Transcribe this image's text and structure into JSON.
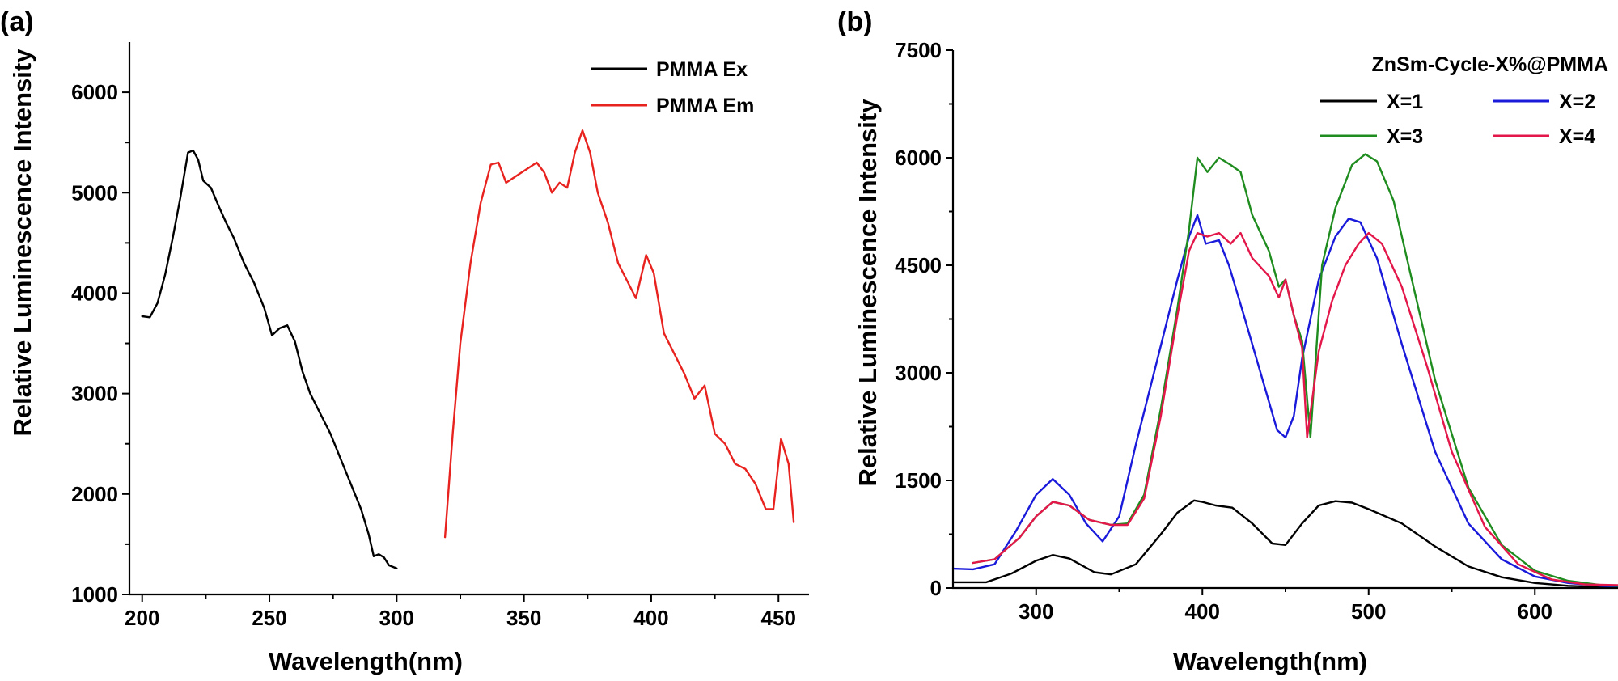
{
  "chart_data": [
    {
      "type": "line",
      "panel_label": "(a)",
      "xlabel": "Wavelength(nm)",
      "ylabel": "Relative Luminescence Intensity",
      "xlim": [
        195,
        462
      ],
      "ylim": [
        1000,
        6500
      ],
      "xticks": [
        200,
        250,
        300,
        350,
        400,
        450
      ],
      "yticks": [
        1000,
        2000,
        3000,
        4000,
        5000,
        6000
      ],
      "legend": {
        "position": "top-right"
      },
      "series": [
        {
          "name": "PMMA Ex",
          "color": "#000000",
          "x": [
            200,
            203,
            206,
            209,
            212,
            215,
            218,
            220,
            222,
            224,
            227,
            230,
            233,
            236,
            240,
            244,
            248,
            251,
            254,
            257,
            260,
            263,
            266,
            270,
            274,
            278,
            282,
            286,
            289,
            291,
            293,
            295,
            297,
            300
          ],
          "y": [
            3770,
            3760,
            3900,
            4180,
            4550,
            4950,
            5400,
            5420,
            5330,
            5120,
            5050,
            4870,
            4700,
            4550,
            4300,
            4100,
            3850,
            3580,
            3650,
            3680,
            3520,
            3220,
            3000,
            2800,
            2600,
            2350,
            2100,
            1850,
            1600,
            1380,
            1400,
            1370,
            1290,
            1260
          ]
        },
        {
          "name": "PMMA Em",
          "color": "#e8231f",
          "x": [
            319,
            322,
            325,
            329,
            333,
            337,
            340,
            343,
            346,
            349,
            352,
            355,
            358,
            361,
            364,
            367,
            370,
            373,
            376,
            379,
            383,
            387,
            391,
            394,
            398,
            401,
            405,
            409,
            413,
            417,
            421,
            425,
            429,
            433,
            437,
            441,
            445,
            448,
            451,
            454,
            456
          ],
          "y": [
            1570,
            2600,
            3500,
            4300,
            4900,
            5280,
            5300,
            5100,
            5150,
            5200,
            5250,
            5300,
            5200,
            5000,
            5100,
            5050,
            5400,
            5620,
            5400,
            5000,
            4700,
            4300,
            4100,
            3950,
            4380,
            4200,
            3600,
            3400,
            3200,
            2950,
            3080,
            2600,
            2500,
            2300,
            2250,
            2100,
            1850,
            1850,
            2550,
            2300,
            1720
          ]
        }
      ]
    },
    {
      "type": "line",
      "panel_label": "(b)",
      "xlabel": "Wavelength(nm)",
      "ylabel": "Relative Luminescence Intensity",
      "xlim": [
        250,
        650
      ],
      "ylim": [
        0,
        7500
      ],
      "xticks": [
        300,
        400,
        500,
        600
      ],
      "yticks": [
        0,
        1500,
        3000,
        4500,
        6000,
        7500
      ],
      "legend": {
        "title": "ZnSm-Cycle-X%@PMMA",
        "position": "top-right"
      },
      "series": [
        {
          "name": "X=1",
          "color": "#000000",
          "x": [
            250,
            270,
            285,
            300,
            310,
            320,
            335,
            345,
            360,
            375,
            385,
            395,
            400,
            408,
            418,
            430,
            442,
            450,
            460,
            470,
            480,
            490,
            500,
            520,
            540,
            560,
            580,
            600,
            620,
            640,
            650
          ],
          "y": [
            80,
            80,
            200,
            380,
            460,
            410,
            220,
            190,
            330,
            750,
            1050,
            1220,
            1200,
            1150,
            1120,
            900,
            620,
            600,
            900,
            1150,
            1210,
            1190,
            1100,
            900,
            580,
            300,
            150,
            70,
            30,
            15,
            10
          ]
        },
        {
          "name": "X=2",
          "color": "#1a1adb",
          "x": [
            250,
            262,
            275,
            288,
            300,
            310,
            320,
            330,
            340,
            350,
            360,
            372,
            385,
            392,
            397,
            402,
            410,
            416,
            425,
            435,
            445,
            450,
            455,
            460,
            470,
            480,
            488,
            495,
            505,
            520,
            540,
            560,
            580,
            600,
            620,
            640,
            650
          ],
          "y": [
            270,
            260,
            330,
            800,
            1300,
            1520,
            1300,
            900,
            650,
            1000,
            2000,
            3100,
            4300,
            4900,
            5200,
            4800,
            4850,
            4500,
            3800,
            3000,
            2200,
            2100,
            2400,
            3200,
            4300,
            4900,
            5150,
            5100,
            4600,
            3400,
            1900,
            900,
            400,
            160,
            70,
            30,
            20
          ]
        },
        {
          "name": "X=3",
          "color": "#1f8c1f",
          "x": [
            262,
            275,
            290,
            300,
            310,
            320,
            332,
            345,
            355,
            365,
            375,
            385,
            392,
            397,
            403,
            410,
            417,
            423,
            430,
            440,
            446,
            450,
            455,
            460,
            465,
            472,
            480,
            490,
            498,
            505,
            515,
            525,
            540,
            560,
            580,
            600,
            620,
            640,
            650
          ],
          "y": [
            350,
            400,
            700,
            1000,
            1200,
            1150,
            950,
            880,
            900,
            1300,
            2500,
            3900,
            5000,
            6000,
            5800,
            6000,
            5900,
            5800,
            5200,
            4700,
            4200,
            4300,
            3800,
            3450,
            2100,
            4500,
            5300,
            5900,
            6050,
            5950,
            5400,
            4400,
            2900,
            1400,
            600,
            240,
            100,
            40,
            30
          ]
        },
        {
          "name": "X=4",
          "color": "#e3174a",
          "x": [
            262,
            275,
            290,
            300,
            310,
            320,
            332,
            345,
            355,
            365,
            375,
            385,
            392,
            397,
            403,
            410,
            417,
            423,
            430,
            440,
            446,
            450,
            455,
            460,
            463,
            470,
            478,
            486,
            494,
            500,
            508,
            520,
            535,
            550,
            570,
            590,
            610,
            630,
            650
          ],
          "y": [
            350,
            400,
            700,
            1000,
            1200,
            1150,
            950,
            880,
            880,
            1250,
            2400,
            3800,
            4700,
            4950,
            4900,
            4950,
            4800,
            4950,
            4600,
            4350,
            4050,
            4300,
            3800,
            3350,
            2100,
            3300,
            4000,
            4500,
            4800,
            4950,
            4800,
            4200,
            3100,
            1900,
            850,
            330,
            120,
            50,
            40
          ]
        }
      ]
    }
  ]
}
